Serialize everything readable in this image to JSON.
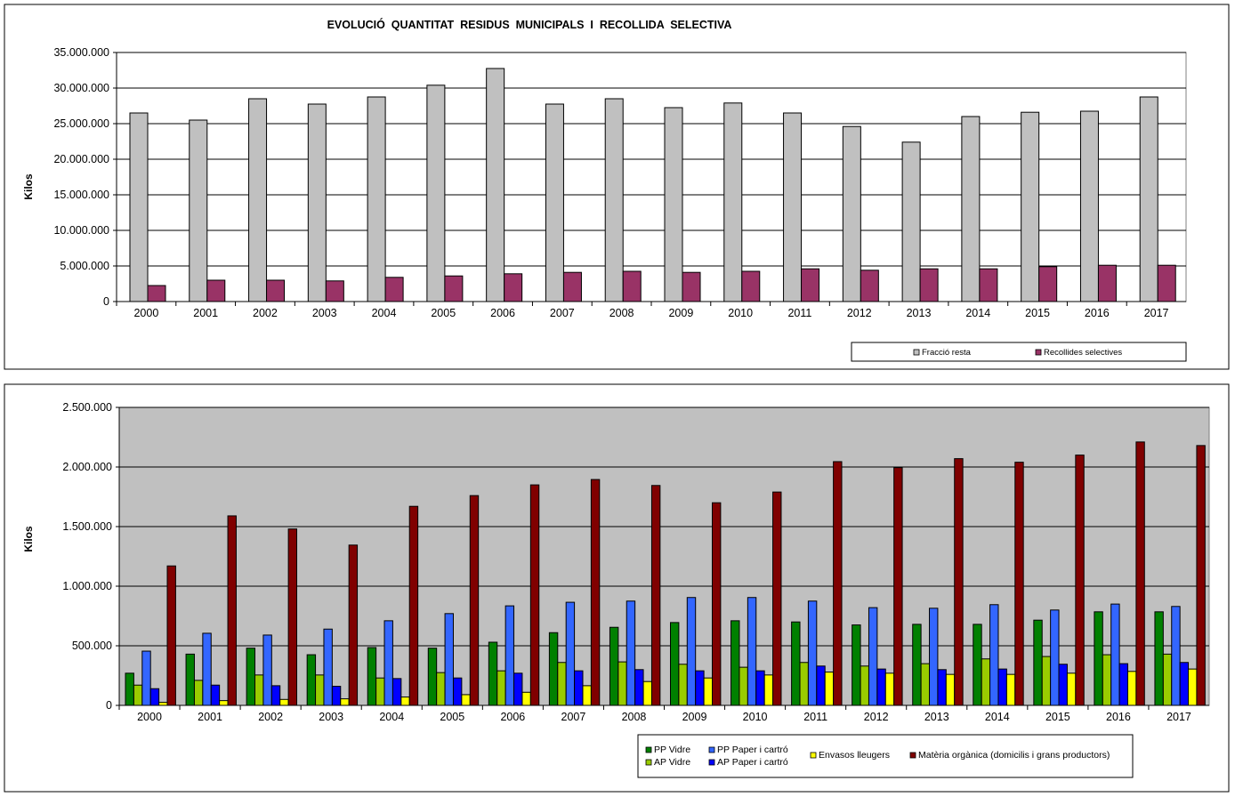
{
  "chart_data": [
    {
      "type": "bar",
      "title": "EVOLUCIÓ  QUANTITAT  RESIDUS  MUNICIPALS  I  RECOLLIDA  SELECTIVA",
      "xlabel": "",
      "ylabel": "Kilos",
      "ylim": [
        0,
        35000000
      ],
      "grid": true,
      "legend": "bottom-right",
      "yticks": [
        0,
        5000000,
        10000000,
        15000000,
        20000000,
        25000000,
        30000000,
        35000000
      ],
      "ytick_labels": [
        "0",
        "5.000.000",
        "10.000.000",
        "15.000.000",
        "20.000.000",
        "25.000.000",
        "30.000.000",
        "35.000.000"
      ],
      "categories": [
        "2000",
        "2001",
        "2002",
        "2003",
        "2004",
        "2005",
        "2006",
        "2007",
        "2008",
        "2009",
        "2010",
        "2011",
        "2012",
        "2013",
        "2014",
        "2015",
        "2016",
        "2017"
      ],
      "series": [
        {
          "name": "Fracció resta",
          "color": "#c0c0c0",
          "values": [
            26500000,
            25500000,
            28500000,
            27750000,
            28750000,
            30400000,
            32750000,
            27750000,
            28500000,
            27250000,
            27900000,
            26500000,
            24600000,
            22400000,
            26000000,
            26600000,
            26750000,
            28750000
          ]
        },
        {
          "name": "Recollides selectives",
          "color": "#993366",
          "values": [
            2250000,
            3000000,
            3000000,
            2900000,
            3400000,
            3600000,
            3900000,
            4100000,
            4250000,
            4100000,
            4250000,
            4600000,
            4400000,
            4600000,
            4600000,
            4900000,
            5100000,
            5100000
          ]
        }
      ]
    },
    {
      "type": "bar",
      "title": "",
      "xlabel": "",
      "ylabel": "Kilos",
      "ylim": [
        0,
        2500000
      ],
      "grid": true,
      "legend": "bottom-right",
      "yticks": [
        0,
        500000,
        1000000,
        1500000,
        2000000,
        2500000
      ],
      "ytick_labels": [
        "0",
        "500.000",
        "1.000.000",
        "1.500.000",
        "2.000.000",
        "2.500.000"
      ],
      "categories": [
        "2000",
        "2001",
        "2002",
        "2003",
        "2004",
        "2005",
        "2006",
        "2007",
        "2008",
        "2009",
        "2010",
        "2011",
        "2012",
        "2013",
        "2014",
        "2015",
        "2016",
        "2017"
      ],
      "series": [
        {
          "name": "PP Vidre",
          "color": "#008000",
          "values": [
            270000,
            430000,
            480000,
            425000,
            485000,
            480000,
            530000,
            610000,
            655000,
            695000,
            710000,
            700000,
            675000,
            680000,
            680000,
            715000,
            785000,
            785000
          ]
        },
        {
          "name": "AP Vidre",
          "color": "#99cc00",
          "values": [
            170000,
            210000,
            255000,
            255000,
            230000,
            275000,
            290000,
            360000,
            365000,
            345000,
            320000,
            360000,
            330000,
            350000,
            390000,
            410000,
            425000,
            430000
          ]
        },
        {
          "name": "PP Paper i cartró",
          "color": "#3366ff",
          "values": [
            455000,
            605000,
            590000,
            640000,
            710000,
            770000,
            835000,
            865000,
            875000,
            905000,
            905000,
            875000,
            820000,
            815000,
            845000,
            800000,
            850000,
            830000
          ]
        },
        {
          "name": "AP Paper i cartró",
          "color": "#0000ff",
          "values": [
            140000,
            170000,
            165000,
            160000,
            225000,
            230000,
            270000,
            290000,
            300000,
            290000,
            290000,
            330000,
            305000,
            300000,
            305000,
            345000,
            350000,
            360000
          ]
        },
        {
          "name": "Envasos lleugers",
          "color": "#ffff00",
          "values": [
            25000,
            40000,
            50000,
            55000,
            70000,
            90000,
            110000,
            165000,
            200000,
            230000,
            255000,
            280000,
            270000,
            260000,
            260000,
            270000,
            285000,
            305000
          ]
        },
        {
          "name": "Matèria orgànica (domicilis i grans productors)",
          "color": "#800000",
          "values": [
            1170000,
            1590000,
            1480000,
            1345000,
            1670000,
            1760000,
            1850000,
            1895000,
            1845000,
            1700000,
            1790000,
            2045000,
            1995000,
            2070000,
            2040000,
            2100000,
            2210000,
            2180000
          ]
        }
      ]
    }
  ]
}
